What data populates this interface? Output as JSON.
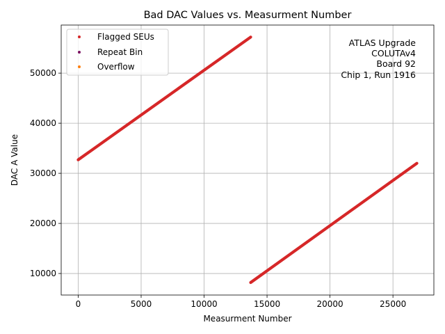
{
  "chart_data": {
    "type": "scatter",
    "title": "Bad DAC Values vs. Measurment Number",
    "xlabel": "Measurment Number",
    "ylabel": "DAC A Value",
    "xlim": [
      -1350,
      28250
    ],
    "ylim": [
      5700,
      59600
    ],
    "xticks": [
      0,
      5000,
      10000,
      15000,
      20000,
      25000
    ],
    "yticks": [
      10000,
      20000,
      30000,
      40000,
      50000
    ],
    "grid": true,
    "legend_position": "upper-left",
    "annotation": [
      "ATLAS Upgrade",
      "COLUTAv4",
      "Board 92",
      "Chip 1, Run 1916"
    ],
    "series": [
      {
        "name": "Flagged SEUs",
        "color": "#d62728",
        "segments": [
          {
            "x": [
              0,
              13700
            ],
            "y": [
              32700,
              57200
            ]
          },
          {
            "x": [
              13700,
              26900
            ],
            "y": [
              8200,
              32000
            ]
          }
        ]
      },
      {
        "name": "Repeat Bin",
        "color": "#7b1060",
        "segments": []
      },
      {
        "name": "Overflow",
        "color": "#ff7f0e",
        "segments": []
      }
    ]
  }
}
